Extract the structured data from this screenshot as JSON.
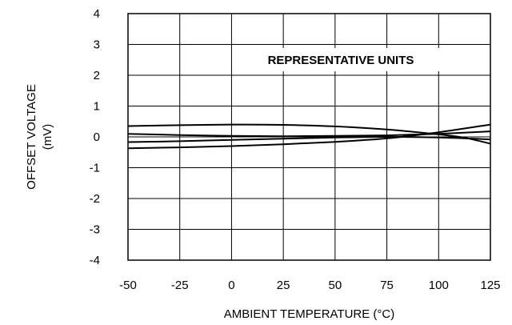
{
  "chart_data": {
    "type": "line",
    "xlabel": "AMBIENT TEMPERATURE (°C)",
    "ylabel_line1": "OFFSET VOLTAGE",
    "ylabel_line2": "(mV)",
    "annotation": "REPRESENTATIVE UNITS",
    "xlim": [
      -50,
      125
    ],
    "ylim": [
      -4,
      4
    ],
    "x_ticks": [
      -50,
      -25,
      0,
      25,
      50,
      75,
      100,
      125
    ],
    "y_ticks": [
      4,
      3,
      2,
      1,
      0,
      -1,
      -2,
      -3,
      -4
    ],
    "grid": true,
    "series": [
      {
        "x": [
          -50,
          -25,
          0,
          25,
          50,
          75,
          100,
          112,
          125
        ],
        "y": [
          0.35,
          0.38,
          0.4,
          0.39,
          0.34,
          0.24,
          0.08,
          -0.02,
          -0.22
        ]
      },
      {
        "x": [
          -50,
          -25,
          0,
          25,
          50,
          75,
          100,
          125
        ],
        "y": [
          0.1,
          0.06,
          0.03,
          0.02,
          0.03,
          0.05,
          0.1,
          0.18
        ]
      },
      {
        "x": [
          -50,
          -25,
          0,
          25,
          50,
          75,
          100,
          125
        ],
        "y": [
          -0.17,
          -0.14,
          -0.1,
          -0.06,
          -0.02,
          0.0,
          -0.02,
          -0.08
        ]
      },
      {
        "x": [
          -50,
          -25,
          0,
          25,
          50,
          75,
          100,
          125
        ],
        "y": [
          -0.37,
          -0.34,
          -0.3,
          -0.24,
          -0.16,
          -0.05,
          0.15,
          0.4
        ]
      }
    ]
  }
}
